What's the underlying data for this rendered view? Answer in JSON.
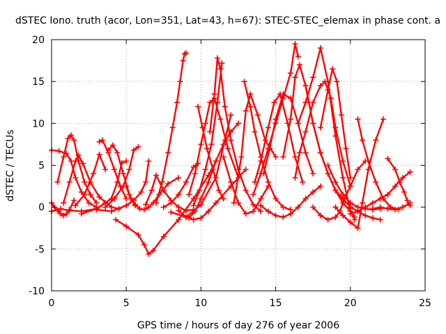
{
  "chart_data": {
    "type": "scatter",
    "title": "dSTEC Iono. truth (acor, Lon=351, Lat=43, h=67): STEC-STEC_elemax in phase cont. a",
    "xlabel": "GPS time / hours of day 276 of year 2006",
    "ylabel": "dSTEC  / TECUs",
    "xlim": [
      0,
      25
    ],
    "ylim": [
      -10,
      20
    ],
    "xticks": [
      0,
      5,
      10,
      15,
      20,
      25
    ],
    "yticks": [
      -10,
      -5,
      0,
      5,
      10,
      15,
      20
    ],
    "grid": true,
    "marker": "+",
    "color": "#ff0000",
    "series": [
      {
        "x": [
          0.0,
          0.5,
          1.0,
          1.3,
          1.6,
          2.0,
          2.5,
          3.0
        ],
        "y": [
          6.8,
          6.7,
          6.4,
          5.5,
          3.5,
          1.8,
          0.5,
          0.0
        ]
      },
      {
        "x": [
          0.0,
          0.2,
          0.4,
          0.6,
          0.8,
          1.0,
          1.2,
          1.5
        ],
        "y": [
          0.5,
          0.0,
          -0.4,
          -0.8,
          -1.0,
          -0.8,
          -0.3,
          0.8
        ]
      },
      {
        "x": [
          0.4,
          0.8,
          1.1,
          1.3,
          1.5,
          1.8,
          2.2,
          2.6,
          3.0
        ],
        "y": [
          3.0,
          6.0,
          8.2,
          8.6,
          8.0,
          5.5,
          3.0,
          1.5,
          0.5
        ]
      },
      {
        "x": [
          0.0,
          0.6,
          1.2,
          2.0,
          3.0,
          3.6
        ],
        "y": [
          -0.5,
          -0.2,
          -0.4,
          -0.5,
          -0.2,
          0.5
        ]
      },
      {
        "x": [
          0.8,
          1.2,
          1.6,
          1.8,
          2.1,
          2.6,
          3.2,
          4.0,
          4.5
        ],
        "y": [
          0.5,
          3.0,
          5.5,
          6.2,
          5.2,
          3.0,
          1.2,
          0.0,
          -0.2
        ]
      },
      {
        "x": [
          1.6,
          2.2,
          2.8,
          3.2,
          3.6
        ],
        "y": [
          0.2,
          1.5,
          4.0,
          6.3,
          4.5
        ]
      },
      {
        "x": [
          3.2,
          3.4,
          3.8,
          4.2,
          4.6,
          5.0
        ],
        "y": [
          7.8,
          8.0,
          6.5,
          4.5,
          2.5,
          1.0
        ]
      },
      {
        "x": [
          2.0,
          3.0,
          4.0,
          4.4,
          4.7,
          5.0
        ],
        "y": [
          -0.8,
          -0.2,
          1.0,
          3.0,
          5.3,
          5.5
        ]
      },
      {
        "x": [
          3.8,
          4.1,
          4.4,
          4.8,
          5.2,
          5.6
        ],
        "y": [
          6.8,
          7.4,
          6.5,
          4.0,
          1.5,
          0.2
        ]
      },
      {
        "x": [
          3.6,
          4.2,
          4.8,
          5.2,
          5.5,
          5.8
        ],
        "y": [
          0.0,
          1.0,
          2.5,
          4.5,
          6.8,
          7.2
        ]
      },
      {
        "x": [
          5.0,
          5.3,
          5.6,
          5.9,
          6.2,
          6.5,
          6.8,
          7.2,
          7.8,
          8.5
        ],
        "y": [
          2.5,
          1.0,
          0.3,
          -0.2,
          -0.3,
          0.0,
          0.5,
          1.5,
          2.8,
          3.5
        ]
      },
      {
        "x": [
          3.0,
          4.0,
          5.0,
          5.5,
          6.0,
          6.3,
          6.5
        ],
        "y": [
          -0.3,
          -0.5,
          0.2,
          0.8,
          1.8,
          3.0,
          5.5
        ]
      },
      {
        "x": [
          4.3,
          5.0,
          5.8,
          6.2,
          6.5,
          6.8,
          7.5,
          8.5,
          9.5,
          10.5,
          11.0
        ],
        "y": [
          -1.5,
          -2.3,
          -3.3,
          -4.5,
          -5.6,
          -5.2,
          -3.5,
          -1.5,
          1.0,
          3.8,
          5.5
        ]
      },
      {
        "x": [
          6.3,
          6.7,
          7.0,
          7.5,
          8.0,
          8.5,
          9.0,
          9.5
        ],
        "y": [
          0.3,
          2.0,
          3.8,
          2.0,
          0.8,
          0.0,
          -0.4,
          -0.3
        ]
      },
      {
        "x": [
          7.0,
          7.4,
          7.8,
          8.1,
          8.4,
          8.6,
          8.8,
          8.9,
          9.0
        ],
        "y": [
          0.5,
          3.0,
          6.5,
          9.5,
          12.5,
          15.0,
          17.5,
          18.3,
          18.4
        ]
      },
      {
        "x": [
          7.5,
          8.0,
          8.5,
          9.0,
          9.5,
          9.8
        ],
        "y": [
          0.0,
          0.5,
          1.5,
          3.0,
          4.8,
          5.2
        ]
      },
      {
        "x": [
          8.0,
          9.0,
          10.0,
          11.0,
          11.6,
          12.0
        ],
        "y": [
          -0.6,
          -1.2,
          0.3,
          3.5,
          8.0,
          11.0
        ]
      },
      {
        "x": [
          9.5,
          9.9,
          10.3,
          10.7,
          11.1,
          11.4
        ],
        "y": [
          0.2,
          2.0,
          4.5,
          7.5,
          12.5,
          17.2
        ]
      },
      {
        "x": [
          10.6,
          10.9,
          11.1,
          11.3,
          11.6,
          12.0,
          12.5,
          13.0,
          13.5,
          14.0
        ],
        "y": [
          9.0,
          13.5,
          17.8,
          16.5,
          12.0,
          8.0,
          4.5,
          2.0,
          0.3,
          -0.5
        ]
      },
      {
        "x": [
          9.2,
          9.6,
          10.0,
          10.3,
          10.6,
          10.9,
          11.3,
          11.8,
          12.5
        ],
        "y": [
          1.5,
          4.0,
          7.5,
          10.0,
          12.5,
          13.0,
          10.5,
          7.0,
          3.5
        ]
      },
      {
        "x": [
          9.2,
          9.6,
          10.0,
          10.5,
          11.0,
          11.5,
          12.0,
          12.5
        ],
        "y": [
          -1.3,
          -0.5,
          1.0,
          3.0,
          5.5,
          7.5,
          9.0,
          10.0
        ]
      },
      {
        "x": [
          9.8,
          10.1,
          10.4,
          10.8,
          11.2,
          11.5
        ],
        "y": [
          12.0,
          9.5,
          7.0,
          4.5,
          2.0,
          1.0
        ]
      },
      {
        "x": [
          8.5,
          9.0,
          9.5,
          10.0,
          10.5,
          11.0,
          12.0,
          13.0
        ],
        "y": [
          -0.4,
          -1.2,
          -1.5,
          -1.3,
          -0.5,
          0.5,
          2.5,
          4.5
        ]
      },
      {
        "x": [
          12.2,
          12.7,
          13.0,
          13.3,
          13.8,
          14.3,
          15.0
        ],
        "y": [
          0.5,
          6.0,
          11.5,
          13.5,
          11.0,
          8.0,
          6.0
        ]
      },
      {
        "x": [
          12.9,
          13.3,
          13.6,
          14.0,
          14.5,
          15.0,
          15.5,
          16.0
        ],
        "y": [
          15.0,
          12.0,
          9.0,
          6.0,
          3.0,
          1.0,
          0.0,
          -0.3
        ]
      },
      {
        "x": [
          11.5,
          12.0,
          12.5,
          13.0,
          13.5,
          14.0,
          14.5
        ],
        "y": [
          6.0,
          3.0,
          0.5,
          -0.8,
          -0.5,
          1.0,
          2.5
        ]
      },
      {
        "x": [
          13.5,
          14.0,
          14.5,
          15.0,
          15.5,
          16.0,
          16.3,
          16.5
        ],
        "y": [
          1.5,
          4.0,
          7.0,
          10.0,
          13.0,
          16.0,
          19.5,
          18.0
        ]
      },
      {
        "x": [
          13.6,
          14.0,
          14.5,
          14.9,
          15.3,
          15.8,
          16.3,
          16.8
        ],
        "y": [
          3.0,
          5.5,
          9.5,
          12.5,
          13.5,
          10.0,
          6.0,
          3.0
        ]
      },
      {
        "x": [
          14.2,
          14.6,
          15.0,
          15.5,
          16.0,
          16.5,
          17.0,
          17.5
        ],
        "y": [
          4.0,
          7.0,
          10.5,
          13.5,
          13.0,
          10.0,
          6.5,
          4.0
        ]
      },
      {
        "x": [
          14.0,
          14.5,
          15.0,
          15.5,
          16.0,
          16.5,
          17.0,
          17.5,
          18.0
        ],
        "y": [
          0.2,
          -0.5,
          -1.0,
          -1.2,
          -0.8,
          0.0,
          1.0,
          1.8,
          2.5
        ]
      },
      {
        "x": [
          15.5,
          16.0,
          16.3,
          16.6,
          17.0,
          17.5,
          18.0,
          18.5,
          19.0,
          19.5,
          20.0,
          20.3
        ],
        "y": [
          6.0,
          10.5,
          15.5,
          17.0,
          14.5,
          10.0,
          6.5,
          4.0,
          2.0,
          0.5,
          -0.5,
          -1.5
        ]
      },
      {
        "x": [
          16.5,
          17.0,
          17.5,
          18.0,
          18.5,
          19.0,
          19.5,
          20.0,
          20.3
        ],
        "y": [
          10.0,
          12.5,
          15.5,
          19.0,
          15.0,
          8.5,
          3.5,
          -0.5,
          -1.2
        ]
      },
      {
        "x": [
          16.3,
          16.6,
          17.0,
          17.5,
          18.0,
          18.3,
          18.7,
          19.0,
          19.5,
          20.0
        ],
        "y": [
          3.5,
          6.5,
          9.0,
          12.5,
          14.5,
          15.0,
          13.0,
          9.5,
          5.5,
          2.5
        ]
      },
      {
        "x": [
          17.0,
          17.5,
          18.0,
          18.5,
          19.0,
          19.5,
          20.0,
          20.5,
          21.0,
          21.5,
          22.0
        ],
        "y": [
          14.5,
          10.0,
          6.5,
          4.0,
          2.0,
          1.0,
          0.0,
          -0.5,
          -1.0,
          -1.3,
          -1.5
        ]
      },
      {
        "x": [
          17.5,
          18.0,
          18.5,
          19.0,
          19.3,
          19.6,
          20.0,
          20.5,
          21.0
        ],
        "y": [
          0.0,
          -1.0,
          -1.5,
          -1.2,
          -0.5,
          1.0,
          2.5,
          4.5,
          5.5
        ]
      },
      {
        "x": [
          18.0,
          18.5,
          18.8,
          19.1,
          19.4,
          19.7,
          20.0
        ],
        "y": [
          9.5,
          14.0,
          16.5,
          15.0,
          11.0,
          7.0,
          3.5
        ]
      },
      {
        "x": [
          18.5,
          19.0,
          19.5,
          20.0,
          20.5,
          21.0,
          21.5,
          22.0
        ],
        "y": [
          5.0,
          3.0,
          1.5,
          0.5,
          0.0,
          -0.2,
          -0.3,
          -0.2
        ]
      },
      {
        "x": [
          19.0,
          19.5,
          20.0,
          20.5,
          20.8,
          21.2,
          21.7,
          22.2
        ],
        "y": [
          0.0,
          -1.0,
          -1.8,
          -2.5,
          0.5,
          4.5,
          8.0,
          10.5
        ]
      },
      {
        "x": [
          20.5,
          20.8,
          21.2,
          21.7,
          22.2,
          22.7,
          23.2
        ],
        "y": [
          10.5,
          8.0,
          5.5,
          3.0,
          1.0,
          0.0,
          -0.3
        ]
      },
      {
        "x": [
          20.0,
          20.5,
          21.0,
          21.5,
          22.0,
          22.5,
          23.0,
          23.5,
          24.0
        ],
        "y": [
          -0.8,
          -0.5,
          0.0,
          0.5,
          1.0,
          1.5,
          2.5,
          3.5,
          4.2
        ]
      },
      {
        "x": [
          22.5,
          23.0,
          23.3,
          23.6,
          23.8,
          24.0
        ],
        "y": [
          5.8,
          4.5,
          3.0,
          1.8,
          0.8,
          0.2
        ]
      },
      {
        "x": [
          21.5,
          22.0,
          22.5,
          23.0,
          23.5,
          24.0
        ],
        "y": [
          -0.2,
          0.0,
          -0.2,
          -0.3,
          0.0,
          0.5
        ]
      }
    ]
  }
}
